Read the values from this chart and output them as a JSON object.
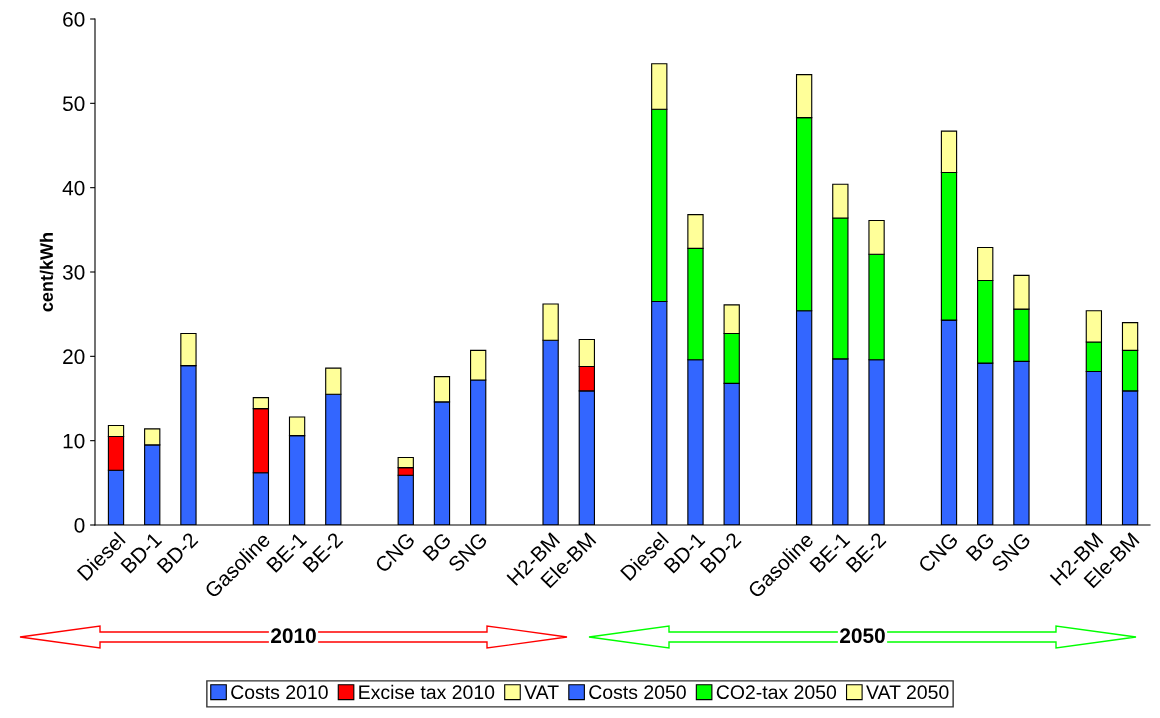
{
  "chart_data": {
    "type": "bar",
    "stacked": true,
    "ylabel": "cent/kWh",
    "categories": [
      "Diesel",
      "BD-1",
      "BD-2",
      null,
      "Gasoline",
      "BE-1",
      "BE-2",
      null,
      "CNG",
      "BG",
      "SNG",
      null,
      "H2-BM",
      "Ele-BM",
      null,
      "Diesel",
      "BD-1",
      "BD-2",
      null,
      "Gasoline",
      "BE-1",
      "BE-2",
      null,
      "CNG",
      "BG",
      "SNG",
      null,
      "H2-BM",
      "Ele-BM"
    ],
    "series": [
      {
        "name": "Costs 2010",
        "color": "#3366ff",
        "values": [
          6.5,
          9.5,
          18.9,
          null,
          6.2,
          10.6,
          15.5,
          null,
          5.9,
          14.6,
          17.2,
          null,
          21.9,
          15.9,
          null,
          null,
          null,
          null,
          null,
          null,
          null,
          null,
          null,
          null,
          null,
          null,
          null,
          null,
          null
        ]
      },
      {
        "name": "Excise tax 2010",
        "color": "#ff0000",
        "values": [
          4.0,
          null,
          null,
          null,
          7.6,
          null,
          null,
          null,
          0.9,
          null,
          null,
          null,
          null,
          2.9,
          null,
          null,
          null,
          null,
          null,
          null,
          null,
          null,
          null,
          null,
          null,
          null,
          null,
          null,
          null
        ]
      },
      {
        "name": "VAT",
        "color": "#ffff99",
        "values": [
          1.3,
          1.9,
          3.8,
          null,
          1.3,
          2.2,
          3.1,
          null,
          1.2,
          3.0,
          3.5,
          null,
          4.3,
          3.2,
          null,
          null,
          null,
          null,
          null,
          null,
          null,
          null,
          null,
          null,
          null,
          null,
          null,
          null,
          null
        ]
      },
      {
        "name": "Costs 2050",
        "color": "#3366ff",
        "values": [
          null,
          null,
          null,
          null,
          null,
          null,
          null,
          null,
          null,
          null,
          null,
          null,
          null,
          null,
          null,
          26.5,
          19.6,
          16.8,
          null,
          25.4,
          19.7,
          19.6,
          null,
          24.3,
          19.2,
          19.4,
          null,
          18.2,
          15.9
        ]
      },
      {
        "name": "CO2-tax 2050",
        "color": "#00ff00",
        "values": [
          null,
          null,
          null,
          null,
          null,
          null,
          null,
          null,
          null,
          null,
          null,
          null,
          null,
          null,
          null,
          22.8,
          13.2,
          5.9,
          null,
          22.9,
          16.7,
          12.5,
          null,
          17.5,
          9.8,
          6.2,
          null,
          3.5,
          4.8
        ]
      },
      {
        "name": "VAT 2050",
        "color": "#ffff99",
        "values": [
          null,
          null,
          null,
          null,
          null,
          null,
          null,
          null,
          null,
          null,
          null,
          null,
          null,
          null,
          null,
          5.4,
          4.0,
          3.4,
          null,
          5.1,
          4.0,
          4.0,
          null,
          4.9,
          3.9,
          4.0,
          null,
          3.7,
          3.3
        ]
      }
    ],
    "ylim": [
      0,
      60
    ],
    "yticks": [
      0,
      10,
      20,
      30,
      40,
      50,
      60
    ],
    "grid": false,
    "legend": "bottom",
    "annotations": [
      "2010",
      "2050"
    ]
  }
}
